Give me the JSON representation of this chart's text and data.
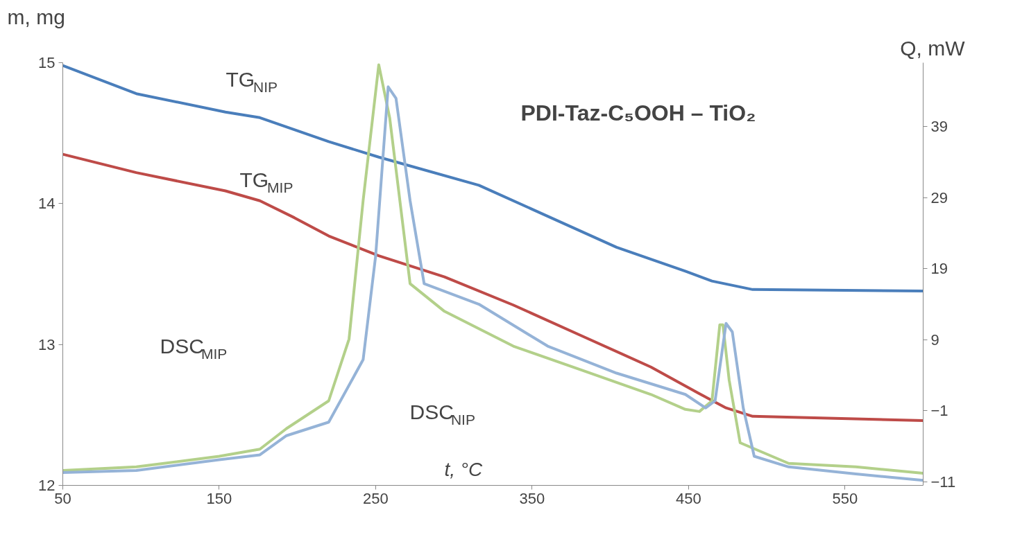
{
  "chart_data": {
    "type": "line",
    "title": "PDI-Taz-C₅OOH – TiO₂",
    "xlabel": "t, °C",
    "ylabel": "m, mg",
    "y2label": "Q, mW",
    "xlim": [
      50,
      600
    ],
    "xticks": [
      50,
      150,
      250,
      350,
      450,
      550
    ],
    "ylim": [
      12,
      15
    ],
    "yticks": [
      12,
      13,
      14,
      15
    ],
    "y2lim": [
      -11.5,
      48
    ],
    "y2ticks": [
      -11,
      -1,
      9,
      19,
      29,
      39
    ],
    "grid": false,
    "marker": "none",
    "line_style": "solid",
    "series": [
      {
        "color": "#4a7ebb",
        "x": [
          50,
          97,
          154,
          176,
          220,
          252,
          316,
          360,
          404,
          448,
          465,
          491,
          600
        ],
        "values": [
          14.98,
          14.78,
          14.65,
          14.61,
          14.44,
          14.33,
          14.13,
          13.91,
          13.69,
          13.52,
          13.45,
          13.39,
          13.38
        ]
      },
      {
        "color": "#be4b48",
        "x": [
          50,
          97,
          154,
          176,
          198,
          220,
          252,
          294,
          338,
          382,
          426,
          457,
          474,
          491,
          600
        ],
        "values": [
          14.35,
          14.22,
          14.09,
          14.02,
          13.9,
          13.77,
          13.63,
          13.48,
          13.28,
          13.06,
          12.84,
          12.65,
          12.55,
          12.49,
          12.46
        ]
      },
      {
        "color": "#b3d08a",
        "axis": "y2",
        "x": [
          50,
          97,
          150,
          176,
          193,
          220,
          233,
          242,
          252,
          259,
          272,
          294,
          338,
          382,
          426,
          448,
          457,
          465,
          470,
          472,
          476,
          483,
          514,
          557,
          600
        ],
        "values": [
          -9.4,
          -8.9,
          -7.4,
          -6.4,
          -3.5,
          0.4,
          9.1,
          28.6,
          47.7,
          40.2,
          16.9,
          13.0,
          8.1,
          4.7,
          1.3,
          -0.8,
          -1.1,
          0.4,
          11.1,
          11.1,
          3.3,
          -5.5,
          -8.4,
          -8.9,
          -9.8
        ]
      },
      {
        "color": "#95b3d7",
        "axis": "y2",
        "x": [
          50,
          97,
          150,
          176,
          193,
          220,
          242,
          250,
          258,
          263,
          272,
          281,
          316,
          360,
          404,
          448,
          461,
          467,
          474,
          478,
          485,
          492,
          514,
          557,
          600
        ],
        "values": [
          -9.7,
          -9.4,
          -7.9,
          -7.2,
          -4.5,
          -2.6,
          6.2,
          20.8,
          44.6,
          43.0,
          28.6,
          16.9,
          14.0,
          8.1,
          4.3,
          1.3,
          -0.6,
          0.4,
          11.3,
          10.1,
          -0.6,
          -7.4,
          -8.9,
          -9.9,
          -10.8
        ]
      }
    ],
    "annotations": [
      "TG$_{NIP}$",
      "TG$_{MIP}$",
      "DSC$_{MIP}$",
      "DSC$_{NIP}$"
    ]
  }
}
